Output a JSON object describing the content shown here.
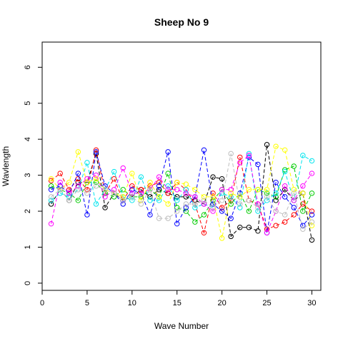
{
  "chart_data": {
    "type": "line",
    "title": "Sheep No 9",
    "xlabel": "Wave Number",
    "ylabel": "Wavlength",
    "xlim": [
      0,
      31
    ],
    "ylim": [
      -0.2,
      6.7
    ],
    "xticks": [
      0,
      5,
      10,
      15,
      20,
      25,
      30
    ],
    "yticks": [
      0,
      1,
      2,
      3,
      4,
      5,
      6
    ],
    "grid": false,
    "legend": "none",
    "marker": "open-circle",
    "line_style": "dashed",
    "x": [
      1,
      2,
      3,
      4,
      5,
      6,
      7,
      8,
      9,
      10,
      11,
      12,
      13,
      14,
      15,
      16,
      17,
      18,
      19,
      20,
      21,
      22,
      23,
      24,
      25,
      26,
      27,
      28,
      29,
      30
    ],
    "series": [
      {
        "color": "#000000",
        "values": [
          2.2,
          2.6,
          2.3,
          2.8,
          2.8,
          3.6,
          2.1,
          2.5,
          2.3,
          2.4,
          2.6,
          2.4,
          2.6,
          2.5,
          2.4,
          2.4,
          2.3,
          2.2,
          2.95,
          2.9,
          1.3,
          1.55,
          1.55,
          1.45,
          3.85,
          2.3,
          2.6,
          2.3,
          2.5,
          1.2
        ]
      },
      {
        "color": "#ff0000",
        "values": [
          2.85,
          3.05,
          2.6,
          2.9,
          2.6,
          3.7,
          2.5,
          2.9,
          2.3,
          2.7,
          2.6,
          2.7,
          2.8,
          2.5,
          2.8,
          2.6,
          2.2,
          1.4,
          2.5,
          2.1,
          2.3,
          3.5,
          2.3,
          2.2,
          1.5,
          1.6,
          1.7,
          1.9,
          2.2,
          2.0
        ]
      },
      {
        "color": "#00cc00",
        "values": [
          2.7,
          2.6,
          2.5,
          2.3,
          2.8,
          2.8,
          2.5,
          2.4,
          2.6,
          2.4,
          2.4,
          2.6,
          2.4,
          3.05,
          2.1,
          2.0,
          1.7,
          1.9,
          2.3,
          2.6,
          2.2,
          2.5,
          2.0,
          2.6,
          2.5,
          2.4,
          3.15,
          3.25,
          2.0,
          2.5
        ]
      },
      {
        "color": "#0000ff",
        "values": [
          2.6,
          2.7,
          2.5,
          3.05,
          1.9,
          3.65,
          2.7,
          2.5,
          2.2,
          2.6,
          2.5,
          1.9,
          2.7,
          3.65,
          1.65,
          2.1,
          2.4,
          3.7,
          2.2,
          2.0,
          1.8,
          2.5,
          3.5,
          3.3,
          1.4,
          2.8,
          2.4,
          2.1,
          1.6,
          1.9
        ]
      },
      {
        "color": "#00e5ee",
        "values": [
          2.3,
          2.5,
          2.4,
          2.6,
          3.35,
          2.2,
          2.6,
          3.1,
          2.4,
          2.3,
          2.95,
          2.3,
          2.3,
          2.7,
          2.3,
          2.6,
          2.1,
          2.2,
          2.1,
          2.5,
          2.4,
          2.1,
          3.6,
          2.0,
          2.3,
          2.5,
          3.1,
          2.3,
          3.55,
          3.4
        ]
      },
      {
        "color": "#ff00ff",
        "values": [
          1.65,
          2.8,
          2.5,
          2.7,
          2.9,
          3.0,
          2.4,
          2.6,
          3.2,
          2.5,
          2.5,
          2.6,
          2.95,
          2.6,
          2.6,
          2.5,
          2.4,
          2.2,
          2.0,
          2.6,
          2.6,
          3.35,
          3.55,
          2.2,
          1.4,
          2.0,
          2.7,
          2.3,
          2.7,
          3.05
        ]
      },
      {
        "color": "#ffff00",
        "values": [
          2.9,
          2.6,
          2.8,
          3.65,
          2.8,
          2.9,
          2.6,
          2.5,
          2.4,
          3.05,
          2.3,
          2.8,
          2.4,
          2.2,
          2.8,
          2.75,
          2.6,
          2.4,
          2.4,
          1.25,
          2.5,
          2.4,
          2.6,
          2.6,
          2.6,
          3.8,
          3.7,
          2.6,
          2.5,
          1.6
        ]
      },
      {
        "color": "#bebebe",
        "values": [
          2.4,
          2.6,
          2.3,
          2.6,
          2.5,
          2.7,
          2.6,
          2.5,
          2.3,
          2.4,
          2.2,
          2.6,
          1.8,
          1.8,
          2.0,
          2.2,
          2.2,
          2.3,
          2.1,
          2.3,
          3.6,
          2.2,
          2.3,
          2.1,
          2.4,
          2.0,
          1.9,
          2.5,
          1.5,
          1.7
        ]
      }
    ]
  }
}
